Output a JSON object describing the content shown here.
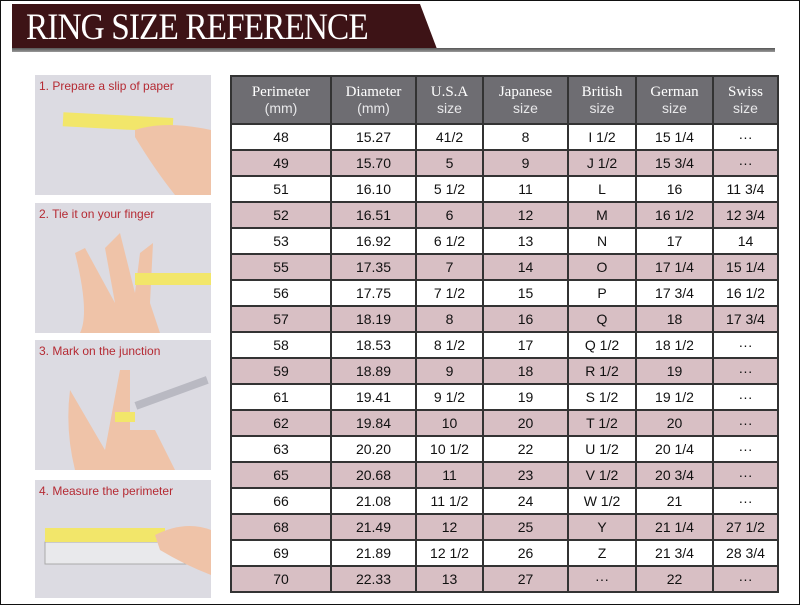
{
  "title": "RING SIZE REFERENCE",
  "colors": {
    "banner": "#3d1316",
    "header": "#6e6d72",
    "alt_row": "#d8bfc4",
    "step_label": "#b52a33"
  },
  "steps": [
    {
      "label": "1. Prepare a slip of paper"
    },
    {
      "label": "2. Tie it on your finger"
    },
    {
      "label": "3. Mark on the junction"
    },
    {
      "label": "4. Measure the perimeter"
    }
  ],
  "table": {
    "headers": [
      {
        "title": "Perimeter",
        "sub": "(mm)"
      },
      {
        "title": "Diameter",
        "sub": "(mm)"
      },
      {
        "title": "U.S.A",
        "sub": "size"
      },
      {
        "title": "Japanese",
        "sub": "size"
      },
      {
        "title": "British",
        "sub": "size"
      },
      {
        "title": "German",
        "sub": "size"
      },
      {
        "title": "Swiss",
        "sub": "size"
      }
    ],
    "rows": [
      [
        "48",
        "15.27",
        "41/2",
        "8",
        "I 1/2",
        "15 1/4",
        "···"
      ],
      [
        "49",
        "15.70",
        "5",
        "9",
        "J 1/2",
        "15 3/4",
        "···"
      ],
      [
        "51",
        "16.10",
        "5 1/2",
        "11",
        "L",
        "16",
        "11 3/4"
      ],
      [
        "52",
        "16.51",
        "6",
        "12",
        "M",
        "16 1/2",
        "12 3/4"
      ],
      [
        "53",
        "16.92",
        "6 1/2",
        "13",
        "N",
        "17",
        "14"
      ],
      [
        "55",
        "17.35",
        "7",
        "14",
        "O",
        "17 1/4",
        "15 1/4"
      ],
      [
        "56",
        "17.75",
        "7 1/2",
        "15",
        "P",
        "17 3/4",
        "16 1/2"
      ],
      [
        "57",
        "18.19",
        "8",
        "16",
        "Q",
        "18",
        "17 3/4"
      ],
      [
        "58",
        "18.53",
        "8 1/2",
        "17",
        "Q  1/2",
        "18 1/2",
        "···"
      ],
      [
        "59",
        "18.89",
        "9",
        "18",
        "R 1/2",
        "19",
        "···"
      ],
      [
        "61",
        "19.41",
        "9 1/2",
        "19",
        "S 1/2",
        "19 1/2",
        "···"
      ],
      [
        "62",
        "19.84",
        "10",
        "20",
        "T 1/2",
        "20",
        "···"
      ],
      [
        "63",
        "20.20",
        "10 1/2",
        "22",
        "U 1/2",
        "20 1/4",
        "···"
      ],
      [
        "65",
        "20.68",
        "11",
        "23",
        "V 1/2",
        "20 3/4",
        "···"
      ],
      [
        "66",
        "21.08",
        "11 1/2",
        "24",
        "W 1/2",
        "21",
        "···"
      ],
      [
        "68",
        "21.49",
        "12",
        "25",
        "Y",
        "21 1/4",
        "27 1/2"
      ],
      [
        "69",
        "21.89",
        "12 1/2",
        "26",
        "Z",
        "21 3/4",
        "28 3/4"
      ],
      [
        "70",
        "22.33",
        "13",
        "27",
        "···",
        "22",
        "···"
      ]
    ]
  }
}
